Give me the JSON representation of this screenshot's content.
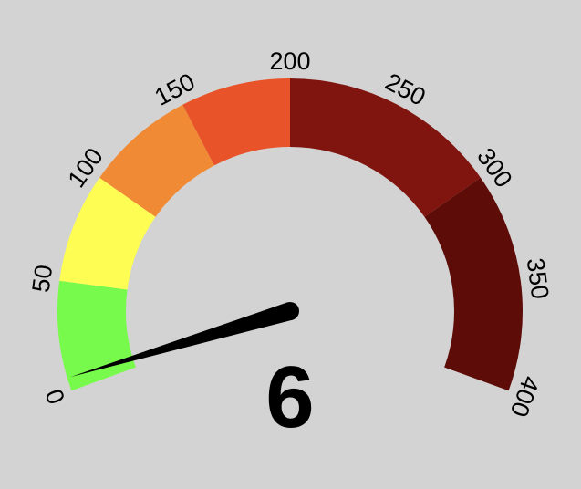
{
  "chart_data": {
    "type": "gauge",
    "value": 6,
    "display_value": "6",
    "range": [
      0,
      400
    ],
    "ticks": [
      "0",
      "50",
      "100",
      "150",
      "200",
      "250",
      "300",
      "350",
      "400"
    ],
    "bands": [
      {
        "from": 0,
        "to": 50,
        "color": "#77fa4b"
      },
      {
        "from": 50,
        "to": 100,
        "color": "#fdfd54"
      },
      {
        "from": 100,
        "to": 150,
        "color": "#f08a35"
      },
      {
        "from": 150,
        "to": 200,
        "color": "#e9532a"
      },
      {
        "from": 200,
        "to": 300,
        "color": "#7f150e"
      },
      {
        "from": 300,
        "to": 400,
        "color": "#5d0c07"
      }
    ],
    "needle_color": "#000000",
    "background": "#d3d3d3"
  }
}
